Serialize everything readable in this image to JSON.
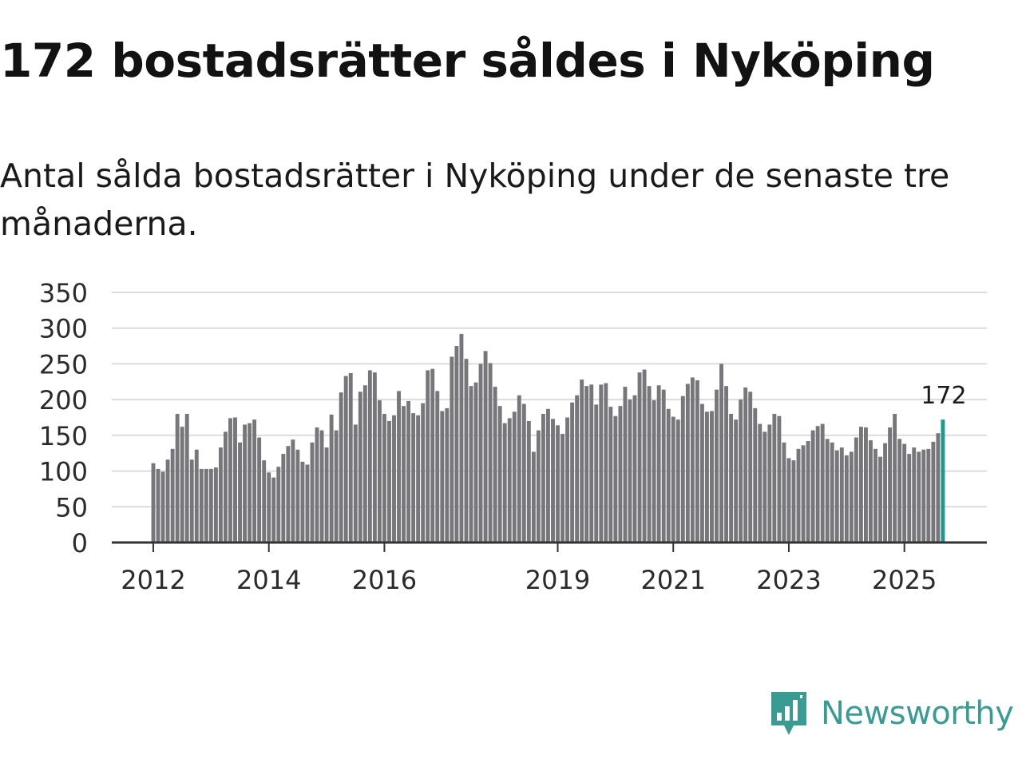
{
  "header": {
    "title": "172 bostadsrätter såldes i Nyköping",
    "subtitle": "Antal sålda bostadsrätter i Nyköping under de senaste tre månaderna."
  },
  "brand": {
    "name": "Newsworthy",
    "color": "#3a9b93",
    "icon": "newsworthy-logo-icon"
  },
  "colors": {
    "bar": "#77767b",
    "highlight": "#1a9a90",
    "grid": "#dcdcdc",
    "axis": "#333333"
  },
  "chart_data": {
    "type": "bar",
    "title": "172 bostadsrätter såldes i Nyköping",
    "subtitle": "Antal sålda bostadsrätter i Nyköping under de senaste tre månaderna.",
    "xlabel": "",
    "ylabel": "",
    "ylim": [
      0,
      350
    ],
    "yticks": [
      0,
      50,
      100,
      150,
      200,
      250,
      300,
      350
    ],
    "grid": true,
    "x_start": "2012-01",
    "year_ticks": [
      {
        "label": "2012",
        "index": 0
      },
      {
        "label": "2014",
        "index": 24
      },
      {
        "label": "2016",
        "index": 48
      },
      {
        "label": "2019",
        "index": 84
      },
      {
        "label": "2021",
        "index": 108
      },
      {
        "label": "2023",
        "index": 132
      },
      {
        "label": "2025",
        "index": 156
      }
    ],
    "highlight_index": 164,
    "highlight_label": "172",
    "values": [
      111,
      103,
      99,
      116,
      131,
      180,
      162,
      180,
      116,
      130,
      103,
      103,
      103,
      105,
      133,
      155,
      174,
      175,
      140,
      165,
      167,
      172,
      147,
      115,
      98,
      91,
      106,
      124,
      135,
      144,
      130,
      113,
      109,
      140,
      161,
      157,
      133,
      179,
      157,
      210,
      233,
      237,
      165,
      211,
      220,
      241,
      238,
      199,
      180,
      170,
      178,
      212,
      191,
      198,
      181,
      178,
      195,
      241,
      243,
      212,
      184,
      188,
      260,
      275,
      292,
      257,
      219,
      224,
      250,
      268,
      251,
      218,
      191,
      167,
      174,
      183,
      206,
      194,
      170,
      127,
      157,
      180,
      187,
      173,
      164,
      152,
      175,
      196,
      206,
      228,
      219,
      221,
      193,
      221,
      223,
      190,
      177,
      191,
      218,
      200,
      206,
      238,
      242,
      219,
      199,
      220,
      214,
      187,
      176,
      172,
      205,
      222,
      231,
      227,
      194,
      183,
      184,
      214,
      250,
      219,
      180,
      172,
      200,
      217,
      211,
      188,
      166,
      155,
      165,
      180,
      177,
      140,
      118,
      115,
      131,
      136,
      142,
      157,
      163,
      166,
      145,
      140,
      129,
      133,
      122,
      127,
      147,
      162,
      161,
      143,
      131,
      120,
      139,
      161,
      180,
      145,
      138,
      124,
      133,
      127,
      130,
      131,
      141,
      153,
      172
    ]
  }
}
